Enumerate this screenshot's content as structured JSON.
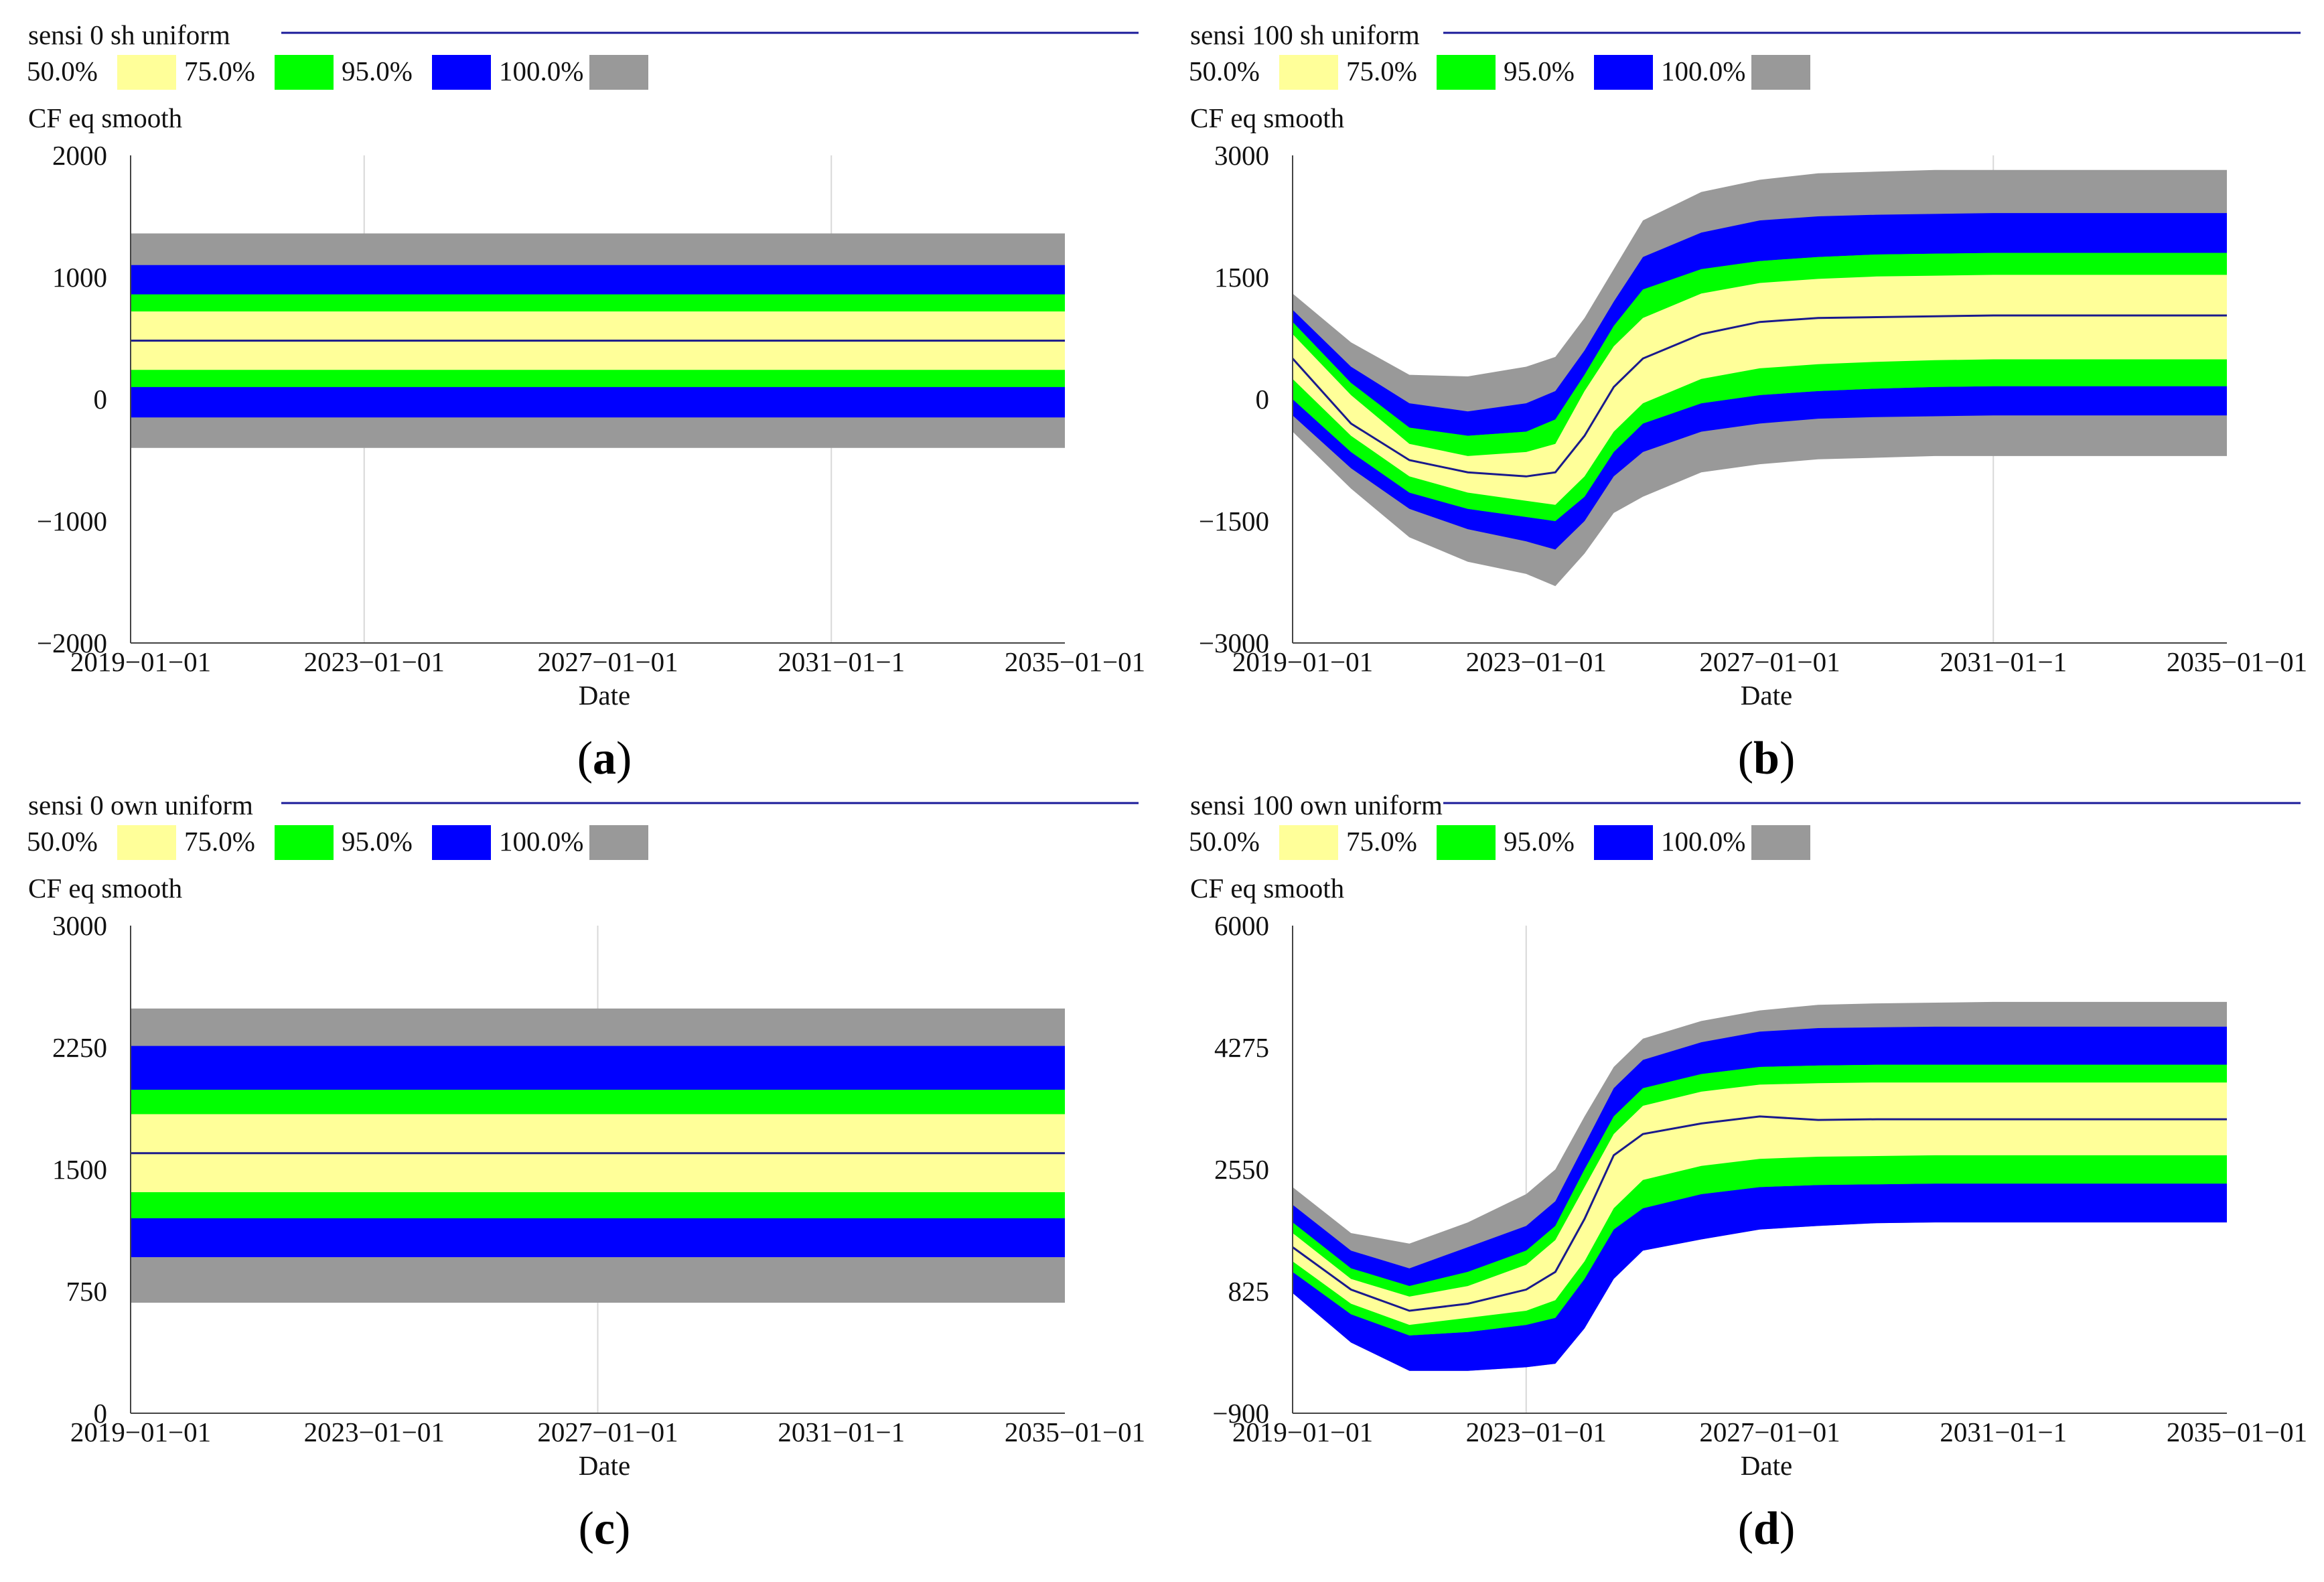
{
  "colors": {
    "band_50": "#ffff99",
    "band_75": "#00ff00",
    "band_95": "#0000ff",
    "band_100": "#999999",
    "mean_line": "#1a1a8c",
    "title_rule": "#1a1a99",
    "grid": "#d8d8d8",
    "axis": "#444444"
  },
  "chart_data": [
    {
      "id": "a",
      "type": "area",
      "caption_open": "(",
      "caption_letter": "a",
      "caption_close": ")",
      "title": "sensi 0 sh uniform",
      "ylabel": "CF eq smooth",
      "xlabel": "Date",
      "legend": [
        "50.0%",
        "75.0%",
        "95.0%",
        "100.0%"
      ],
      "ylim": [
        -2000,
        2000
      ],
      "yticks": [
        "2000",
        "1000",
        "0",
        "−1000",
        "−2000"
      ],
      "xticks": [
        "2019−01−01",
        "2023−01−01",
        "2027−01−01",
        "2031−01−1",
        "2035−01−01"
      ],
      "xrange": [
        2019,
        2035
      ],
      "gridlines_x": [
        2023,
        2031
      ],
      "x": [
        2019,
        2035
      ],
      "series": [
        {
          "name": "100.0%",
          "upper": [
            1360,
            1360
          ],
          "lower": [
            -400,
            -400
          ]
        },
        {
          "name": "95.0%",
          "upper": [
            1100,
            1100
          ],
          "lower": [
            -150,
            -150
          ]
        },
        {
          "name": "75.0%",
          "upper": [
            860,
            860
          ],
          "lower": [
            100,
            100
          ]
        },
        {
          "name": "50.0%",
          "upper": [
            720,
            720
          ],
          "lower": [
            240,
            240
          ]
        },
        {
          "name": "mean",
          "values": [
            480,
            480
          ]
        }
      ]
    },
    {
      "id": "b",
      "type": "area",
      "caption_open": "(",
      "caption_letter": "b",
      "caption_close": ")",
      "title": "sensi 100 sh uniform",
      "ylabel": "CF eq smooth",
      "xlabel": "Date",
      "legend": [
        "50.0%",
        "75.0%",
        "95.0%",
        "100.0%"
      ],
      "ylim": [
        -3000,
        3000
      ],
      "yticks": [
        "3000",
        "1500",
        "0",
        "−1500",
        "−3000"
      ],
      "xticks": [
        "2019−01−01",
        "2023−01−01",
        "2027−01−01",
        "2031−01−1",
        "2035−01−01"
      ],
      "xrange": [
        2019,
        2035
      ],
      "gridlines_x": [
        2031
      ],
      "x": [
        2019,
        2020,
        2021,
        2022,
        2023,
        2023.5,
        2024,
        2024.5,
        2025,
        2026,
        2027,
        2028,
        2029,
        2030,
        2031,
        2032,
        2033,
        2034,
        2035
      ],
      "series": [
        {
          "name": "100.0%",
          "upper": [
            1300,
            700,
            300,
            280,
            400,
            520,
            1000,
            1600,
            2200,
            2550,
            2700,
            2780,
            2800,
            2820,
            2820,
            2820,
            2820,
            2820,
            2820
          ],
          "lower": [
            -400,
            -1100,
            -1700,
            -2000,
            -2150,
            -2300,
            -1900,
            -1400,
            -1200,
            -900,
            -800,
            -740,
            -720,
            -700,
            -700,
            -700,
            -700,
            -700,
            -700
          ]
        },
        {
          "name": "95.0%",
          "upper": [
            1100,
            400,
            -50,
            -150,
            -50,
            100,
            600,
            1200,
            1750,
            2050,
            2200,
            2250,
            2270,
            2280,
            2290,
            2290,
            2290,
            2290,
            2290
          ],
          "lower": [
            -200,
            -850,
            -1350,
            -1600,
            -1750,
            -1850,
            -1500,
            -950,
            -650,
            -400,
            -300,
            -240,
            -220,
            -210,
            -200,
            -200,
            -200,
            -200,
            -200
          ]
        },
        {
          "name": "75.0%",
          "upper": [
            950,
            200,
            -350,
            -450,
            -400,
            -250,
            300,
            900,
            1350,
            1600,
            1700,
            1750,
            1780,
            1790,
            1800,
            1800,
            1800,
            1800,
            1800
          ],
          "lower": [
            0,
            -650,
            -1150,
            -1350,
            -1450,
            -1500,
            -1200,
            -650,
            -300,
            -50,
            50,
            100,
            130,
            150,
            160,
            160,
            160,
            160,
            160
          ]
        },
        {
          "name": "50.0%",
          "upper": [
            800,
            50,
            -550,
            -700,
            -650,
            -550,
            100,
            650,
            1000,
            1300,
            1430,
            1480,
            1510,
            1520,
            1530,
            1530,
            1530,
            1530,
            1530
          ],
          "lower": [
            250,
            -450,
            -950,
            -1150,
            -1250,
            -1300,
            -950,
            -400,
            -50,
            250,
            380,
            430,
            460,
            480,
            490,
            490,
            490,
            490,
            490
          ]
        },
        {
          "name": "mean",
          "values": [
            500,
            -300,
            -750,
            -900,
            -950,
            -900,
            -450,
            150,
            500,
            800,
            950,
            1000,
            1010,
            1020,
            1030,
            1030,
            1030,
            1030,
            1030
          ]
        }
      ]
    },
    {
      "id": "c",
      "type": "area",
      "caption_open": "(",
      "caption_letter": "c",
      "caption_close": ")",
      "title": "sensi 0 own uniform",
      "ylabel": "CF eq smooth",
      "xlabel": "Date",
      "legend": [
        "50.0%",
        "75.0%",
        "95.0%",
        "100.0%"
      ],
      "ylim": [
        0,
        3000
      ],
      "yticks": [
        "3000",
        "2250",
        "1500",
        "750",
        "0"
      ],
      "xticks": [
        "2019−01−01",
        "2023−01−01",
        "2027−01−01",
        "2031−01−1",
        "2035−01−01"
      ],
      "xrange": [
        2019,
        2035
      ],
      "gridlines_x": [
        2027
      ],
      "x": [
        2019,
        2035
      ],
      "series": [
        {
          "name": "100.0%",
          "upper": [
            2490,
            2490
          ],
          "lower": [
            680,
            680
          ]
        },
        {
          "name": "95.0%",
          "upper": [
            2260,
            2260
          ],
          "lower": [
            960,
            960
          ]
        },
        {
          "name": "75.0%",
          "upper": [
            1990,
            1990
          ],
          "lower": [
            1200,
            1200
          ]
        },
        {
          "name": "50.0%",
          "upper": [
            1840,
            1840
          ],
          "lower": [
            1360,
            1360
          ]
        },
        {
          "name": "mean",
          "values": [
            1600,
            1600
          ]
        }
      ]
    },
    {
      "id": "d",
      "type": "area",
      "caption_open": "(",
      "caption_letter": "d",
      "caption_close": ")",
      "title": "sensi 100 own uniform",
      "ylabel": "CF eq smooth",
      "xlabel": "Date",
      "legend": [
        "50.0%",
        "75.0%",
        "95.0%",
        "100.0%"
      ],
      "ylim": [
        -900,
        6000
      ],
      "yticks": [
        "6000",
        "4275",
        "2550",
        "825",
        "−900"
      ],
      "xticks": [
        "2019−01−01",
        "2023−01−01",
        "2027−01−01",
        "2031−01−1",
        "2035−01−01"
      ],
      "xrange": [
        2019,
        2035
      ],
      "gridlines_x": [
        2023
      ],
      "x": [
        2019,
        2020,
        2021,
        2022,
        2023,
        2023.5,
        2024,
        2024.5,
        2025,
        2026,
        2027,
        2028,
        2029,
        2030,
        2031,
        2032,
        2033,
        2034,
        2035
      ],
      "series": [
        {
          "name": "100.0%",
          "upper": [
            2300,
            1650,
            1500,
            1800,
            2200,
            2550,
            3300,
            4000,
            4400,
            4650,
            4800,
            4880,
            4900,
            4910,
            4920,
            4920,
            4920,
            4920,
            4920
          ],
          "lower": [
            800,
            100,
            -300,
            -300,
            -250,
            -200,
            300,
            1000,
            1400,
            1560,
            1700,
            1750,
            1790,
            1800,
            1800,
            1800,
            1800,
            1800,
            1800
          ]
        },
        {
          "name": "95.0%",
          "upper": [
            2050,
            1400,
            1150,
            1450,
            1750,
            2100,
            2900,
            3700,
            4100,
            4350,
            4500,
            4550,
            4560,
            4570,
            4570,
            4570,
            4570,
            4570,
            4570
          ]
        },
        {
          "name": "75.0%",
          "upper": [
            1800,
            1150,
            900,
            1100,
            1400,
            1750,
            2550,
            3300,
            3700,
            3900,
            4000,
            4020,
            4030,
            4030,
            4030,
            4030,
            4030,
            4030,
            4030
          ],
          "lower": [
            1100,
            500,
            200,
            250,
            350,
            450,
            1000,
            1700,
            2000,
            2200,
            2300,
            2330,
            2340,
            2350,
            2350,
            2350,
            2350,
            2350,
            2350
          ]
        },
        {
          "name": "50.0%",
          "upper": [
            1650,
            1000,
            750,
            900,
            1200,
            1550,
            2300,
            3050,
            3450,
            3650,
            3750,
            3770,
            3780,
            3780,
            3780,
            3780,
            3780,
            3780,
            3780
          ],
          "lower": [
            1250,
            650,
            350,
            450,
            550,
            700,
            1250,
            2000,
            2400,
            2600,
            2700,
            2730,
            2740,
            2750,
            2750,
            2750,
            2750,
            2750,
            2750
          ]
        },
        {
          "name": "mean",
          "values": [
            1450,
            850,
            550,
            650,
            850,
            1100,
            1850,
            2750,
            3050,
            3200,
            3300,
            3250,
            3260,
            3260,
            3260,
            3260,
            3260,
            3260,
            3260
          ]
        }
      ]
    }
  ]
}
